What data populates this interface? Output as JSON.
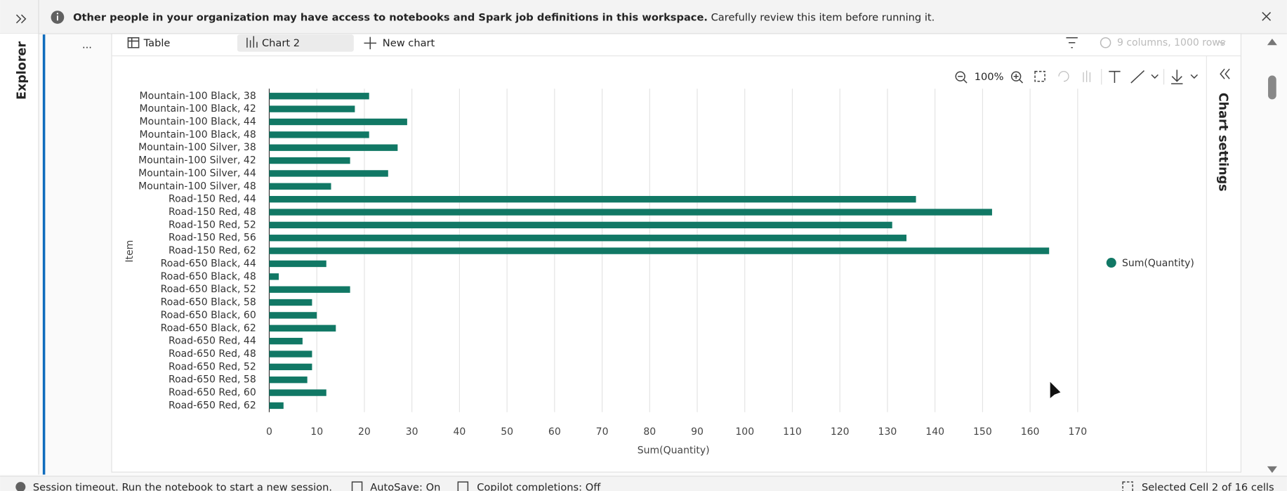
{
  "banner": {
    "bold": "Other people in your organization may have access to notebooks and Spark job definitions in this workspace.",
    "text": "Carefully review this item before running it."
  },
  "sidebar": {
    "label": "Explorer"
  },
  "toolbar": {
    "more": "...",
    "tabs": [
      "Table",
      "Chart 2"
    ],
    "new_chart": "New chart",
    "info": "9 columns, 1000 rows",
    "zoom": "100%"
  },
  "chart_settings": "Chart settings",
  "status_bar": [
    "Session timeout. Run the notebook to start a new session.",
    "AutoSave: On",
    "Copilot completions: Off",
    "Selected Cell 2 of 16 cells"
  ],
  "chart_data": {
    "type": "bar",
    "orientation": "horizontal",
    "categories": [
      "Mountain-100 Black, 38",
      "Mountain-100 Black, 42",
      "Mountain-100 Black, 44",
      "Mountain-100 Black, 48",
      "Mountain-100 Silver, 38",
      "Mountain-100 Silver, 42",
      "Mountain-100 Silver, 44",
      "Mountain-100 Silver, 48",
      "Road-150 Red, 44",
      "Road-150 Red, 48",
      "Road-150 Red, 52",
      "Road-150 Red, 56",
      "Road-150 Red, 62",
      "Road-650 Black, 44",
      "Road-650 Black, 48",
      "Road-650 Black, 52",
      "Road-650 Black, 58",
      "Road-650 Black, 60",
      "Road-650 Black, 62",
      "Road-650 Red, 44",
      "Road-650 Red, 48",
      "Road-650 Red, 52",
      "Road-650 Red, 58",
      "Road-650 Red, 60",
      "Road-650 Red, 62"
    ],
    "series": [
      {
        "name": "Sum(Quantity)",
        "color": "#117865",
        "values": [
          21,
          18,
          29,
          21,
          27,
          17,
          25,
          13,
          136,
          152,
          131,
          134,
          164,
          12,
          2,
          17,
          9,
          10,
          14,
          7,
          9,
          9,
          8,
          12,
          3
        ]
      }
    ],
    "x_label": "Sum(Quantity)",
    "y_label": "Item",
    "xlim": [
      0,
      170
    ],
    "xticks": [
      0,
      10,
      20,
      30,
      40,
      50,
      60,
      70,
      80,
      90,
      100,
      110,
      120,
      130,
      140,
      150,
      160,
      170
    ],
    "grid": true,
    "legend": "right"
  }
}
